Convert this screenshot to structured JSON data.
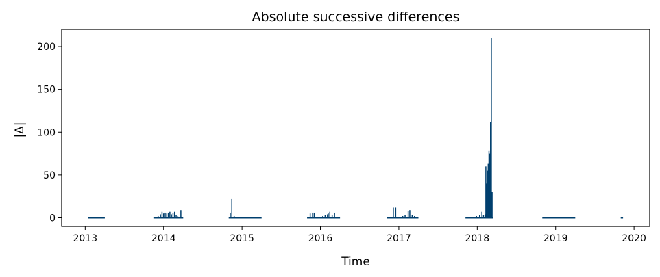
{
  "chart_data": {
    "type": "bar",
    "title": "Absolute successive differences",
    "xlabel": "Time",
    "ylabel": "|Δ|",
    "xlim": [
      2012.7,
      2020.2
    ],
    "ylim": [
      -10,
      220
    ],
    "x_ticks": [
      2013,
      2014,
      2015,
      2016,
      2017,
      2018,
      2019,
      2020
    ],
    "y_ticks": [
      0,
      50,
      100,
      150,
      200
    ],
    "grid": false,
    "color": "#003f6e",
    "segments": [
      {
        "start": 2013.04,
        "end": 2013.25,
        "spikes": []
      },
      {
        "start": 2013.87,
        "end": 2014.25,
        "spikes": [
          [
            2013.93,
            2
          ],
          [
            2013.96,
            4
          ],
          [
            2013.98,
            7
          ],
          [
            2014.0,
            5
          ],
          [
            2014.02,
            6
          ],
          [
            2014.04,
            5
          ],
          [
            2014.06,
            6
          ],
          [
            2014.08,
            7
          ],
          [
            2014.1,
            4
          ],
          [
            2014.12,
            6
          ],
          [
            2014.14,
            7
          ],
          [
            2014.16,
            3
          ],
          [
            2014.18,
            2
          ],
          [
            2014.22,
            9
          ]
        ]
      },
      {
        "start": 2014.83,
        "end": 2015.25,
        "spikes": [
          [
            2014.85,
            6
          ],
          [
            2014.87,
            22
          ],
          [
            2014.9,
            2
          ],
          [
            2014.95,
            1
          ],
          [
            2015.0,
            1
          ],
          [
            2015.05,
            1
          ],
          [
            2015.12,
            1
          ]
        ]
      },
      {
        "start": 2015.83,
        "end": 2016.25,
        "spikes": [
          [
            2015.87,
            5
          ],
          [
            2015.9,
            6
          ],
          [
            2015.92,
            6
          ],
          [
            2016.0,
            1
          ],
          [
            2016.03,
            2
          ],
          [
            2016.06,
            3
          ],
          [
            2016.09,
            4
          ],
          [
            2016.1,
            5
          ],
          [
            2016.12,
            7
          ],
          [
            2016.15,
            3
          ],
          [
            2016.18,
            6
          ]
        ]
      },
      {
        "start": 2016.85,
        "end": 2017.25,
        "spikes": [
          [
            2016.93,
            12
          ],
          [
            2016.96,
            12
          ],
          [
            2017.0,
            1
          ],
          [
            2017.05,
            2
          ],
          [
            2017.08,
            3
          ],
          [
            2017.12,
            8
          ],
          [
            2017.14,
            9
          ],
          [
            2017.17,
            3
          ],
          [
            2017.2,
            2
          ]
        ]
      },
      {
        "start": 2017.85,
        "end": 2018.2,
        "spikes": [
          [
            2017.95,
            1
          ],
          [
            2017.99,
            2
          ],
          [
            2018.01,
            1
          ],
          [
            2018.03,
            3
          ],
          [
            2018.06,
            7
          ],
          [
            2018.08,
            3
          ],
          [
            2018.1,
            4
          ],
          [
            2018.11,
            60
          ],
          [
            2018.12,
            40
          ],
          [
            2018.13,
            55
          ],
          [
            2018.14,
            63
          ],
          [
            2018.15,
            78
          ],
          [
            2018.16,
            75
          ],
          [
            2018.17,
            112
          ],
          [
            2018.18,
            210
          ],
          [
            2018.19,
            30
          ]
        ]
      },
      {
        "start": 2018.83,
        "end": 2019.25,
        "spikes": []
      },
      {
        "start": 2019.83,
        "end": 2019.86,
        "spikes": []
      }
    ]
  }
}
